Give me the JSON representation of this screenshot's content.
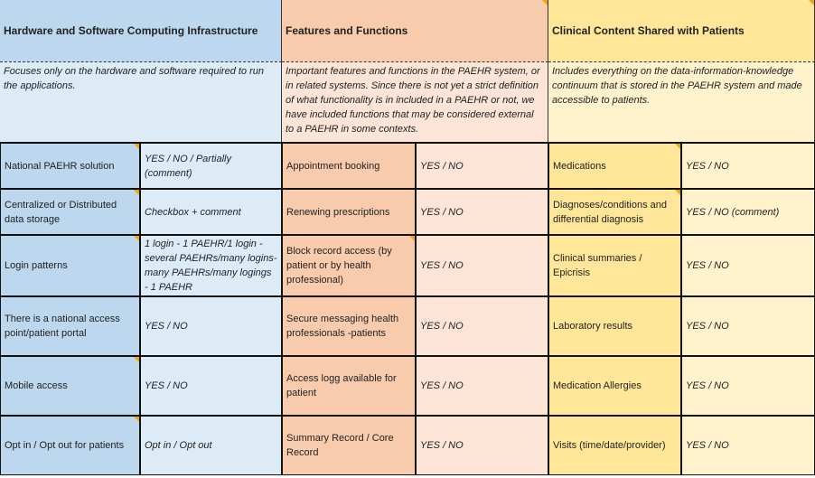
{
  "colors": {
    "blue_dark": "#bdd7ee",
    "blue_light": "#ddebf7",
    "orange_dark": "#f8cbad",
    "orange_light": "#fce4d6",
    "yellow_dark": "#ffe699",
    "yellow_light": "#fff2cc",
    "comment_marker": "#f0a800"
  },
  "sections": [
    {
      "title": "Hardware and Software Computing Infrastructure",
      "description": "Focuses only on the hardware and software required to run the applications.",
      "rows": [
        {
          "label": "National PAEHR solution",
          "value": "YES / NO / Partially (comment)"
        },
        {
          "label": "Centralized or Distributed data storage",
          "value": "Checkbox + comment"
        },
        {
          "label": "Login patterns",
          "value": " 1 login - 1 PAEHR/1 login - several PAEHRs/many logins-many PAEHRs/many logings - 1 PAEHR"
        },
        {
          "label": "There is a national access point/patient portal",
          "value": "YES / NO"
        },
        {
          "label": "Mobile access",
          "value": "YES / NO"
        },
        {
          "label": "Opt in / Opt out for patients",
          "value": "Opt in / Opt out"
        }
      ]
    },
    {
      "title": "Features and Functions",
      "description": "Important features and functions in the PAEHR system, or in related systems. Since there is not yet a strict definition of what functionality is in included in a PAEHR or not, we have included functions that may be considered external to a PAEHR in some contexts.",
      "rows": [
        {
          "label": "Appointment booking",
          "value": "YES / NO"
        },
        {
          "label": "Renewing prescriptions",
          "value": "YES / NO"
        },
        {
          "label": "Block record access (by patient or by health professional)",
          "value": "YES / NO"
        },
        {
          "label": "Secure messaging health professionals -patients",
          "value": "YES / NO"
        },
        {
          "label": "Access logg available for patient",
          "value": "YES / NO"
        },
        {
          "label": "Summary Record / Core Record",
          "value": "YES / NO"
        }
      ]
    },
    {
      "title": "Clinical Content Shared with Patients",
      "description": "Includes everything on the data-information-knowledge continuum that is stored in the PAEHR system and made accessible to patients.",
      "rows": [
        {
          "label": "Medications",
          "value": "YES / NO"
        },
        {
          "label": "Diagnoses/conditions and differential diagnosis",
          "value": "YES / NO (comment)"
        },
        {
          "label": "Clinical summaries / Epicrisis",
          "value": "YES / NO"
        },
        {
          "label": "Laboratory results",
          "value": "YES / NO"
        },
        {
          "label": "Medication Allergies",
          "value": "YES / NO"
        },
        {
          "label": "Visits (time/date/provider)",
          "value": "YES / NO"
        }
      ]
    }
  ]
}
